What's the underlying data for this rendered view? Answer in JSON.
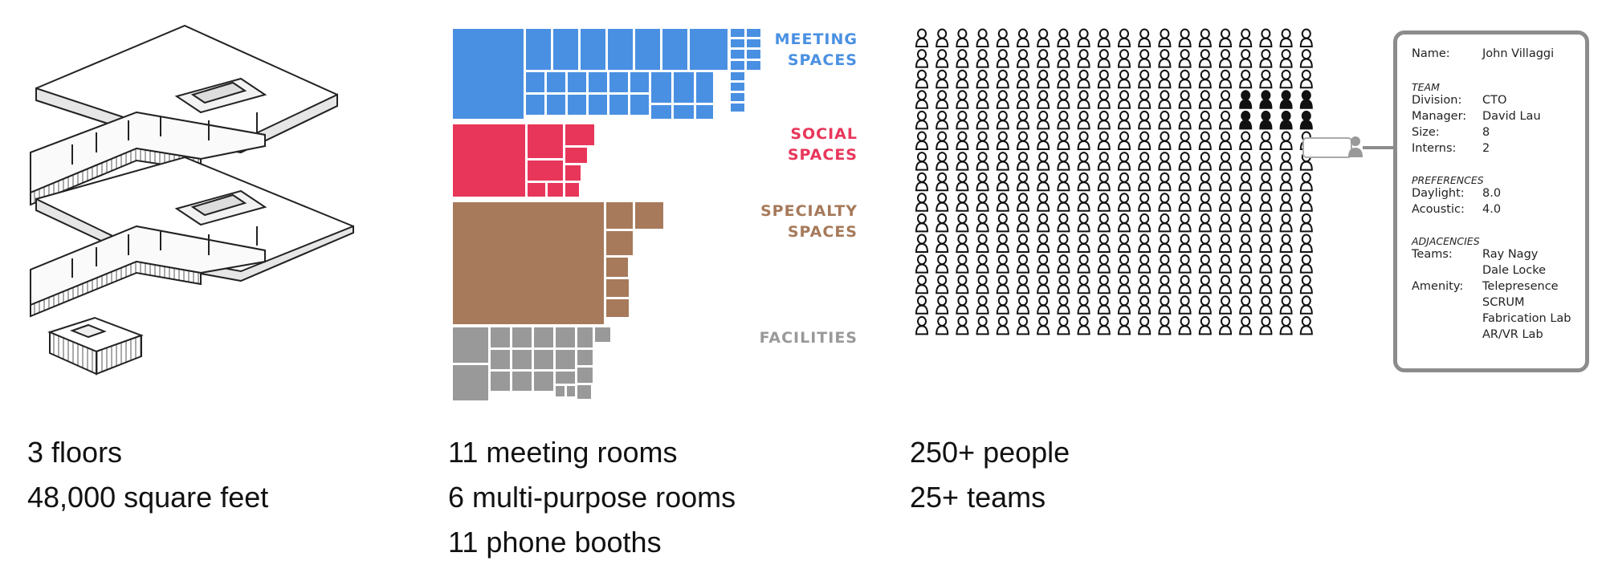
{
  "building": {
    "stats": [
      "3 floors",
      "48,000 square feet"
    ]
  },
  "rooms": {
    "stats": [
      "11 meeting rooms",
      "6 multi-purpose rooms",
      "11 phone booths"
    ],
    "categories": [
      {
        "label_lines": [
          "MEETING",
          "SPACES"
        ],
        "color": "#4a90e2"
      },
      {
        "label_lines": [
          "SOCIAL",
          "SPACES"
        ],
        "color": "#e8365a"
      },
      {
        "label_lines": [
          "SPECIALTY",
          "SPACES"
        ],
        "color": "#a67a5b"
      },
      {
        "label_lines": [
          "FACILITIES"
        ],
        "color": "#999999"
      }
    ]
  },
  "people": {
    "stats": [
      "250+ people",
      "25+ teams"
    ],
    "grid": {
      "rows": 15,
      "cols": 20
    },
    "highlighted_team_size": 8,
    "icon": "person-icon",
    "outline_color": "#111111"
  },
  "profile": {
    "name_label": "Name:",
    "name": "John Villaggi",
    "team_heading": "TEAM",
    "team": [
      {
        "k": "Division:",
        "v": "CTO"
      },
      {
        "k": "Manager:",
        "v": "David Lau"
      },
      {
        "k": "Size:",
        "v": "8"
      },
      {
        "k": "Interns:",
        "v": "2"
      }
    ],
    "preferences_heading": "PREFERENCES",
    "preferences": [
      {
        "k": "Daylight:",
        "v": "8.0"
      },
      {
        "k": "Acoustic:",
        "v": "4.0"
      }
    ],
    "adjacencies_heading": "ADJACENCIES",
    "teams_label": "Teams:",
    "teams": [
      "Ray Nagy",
      "Dale Locke"
    ],
    "amenity_label": "Amenity:",
    "amenities": [
      "Telepresence",
      "SCRUM",
      "Fabrication Lab",
      "AR/VR Lab"
    ]
  }
}
